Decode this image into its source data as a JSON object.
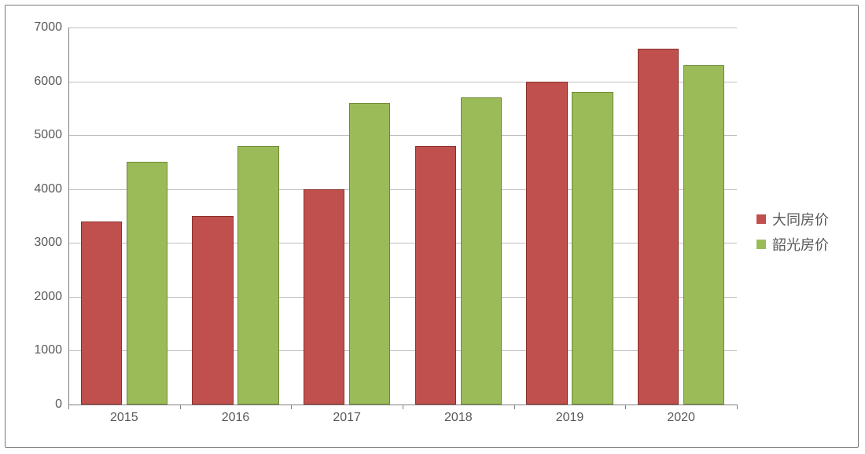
{
  "chart": {
    "type": "bar",
    "background_color": "#ffffff",
    "frame_border_color": "#777777",
    "axis_color": "#808080",
    "grid_color": "#bfbfbf",
    "tick_label_color": "#595959",
    "tick_fontsize": 16,
    "legend_fontsize": 18,
    "ylim": [
      0,
      7000
    ],
    "ytick_step": 1000,
    "yticks": [
      0,
      1000,
      2000,
      3000,
      4000,
      5000,
      6000,
      7000
    ],
    "categories": [
      "2015",
      "2016",
      "2017",
      "2018",
      "2019",
      "2020"
    ],
    "bar_group_width": 0.78,
    "bar_inner_gap": 0.04,
    "series": [
      {
        "name": "大同房价",
        "fill_color": "#c0504d",
        "border_color": "#8a2f2c",
        "values": [
          3400,
          3500,
          4000,
          4800,
          6000,
          6600
        ]
      },
      {
        "name": "韶光房价",
        "fill_color": "#9bbb59",
        "border_color": "#6e8a36",
        "values": [
          4500,
          4800,
          5600,
          5700,
          5800,
          6300
        ]
      }
    ],
    "legend_position": "right"
  }
}
